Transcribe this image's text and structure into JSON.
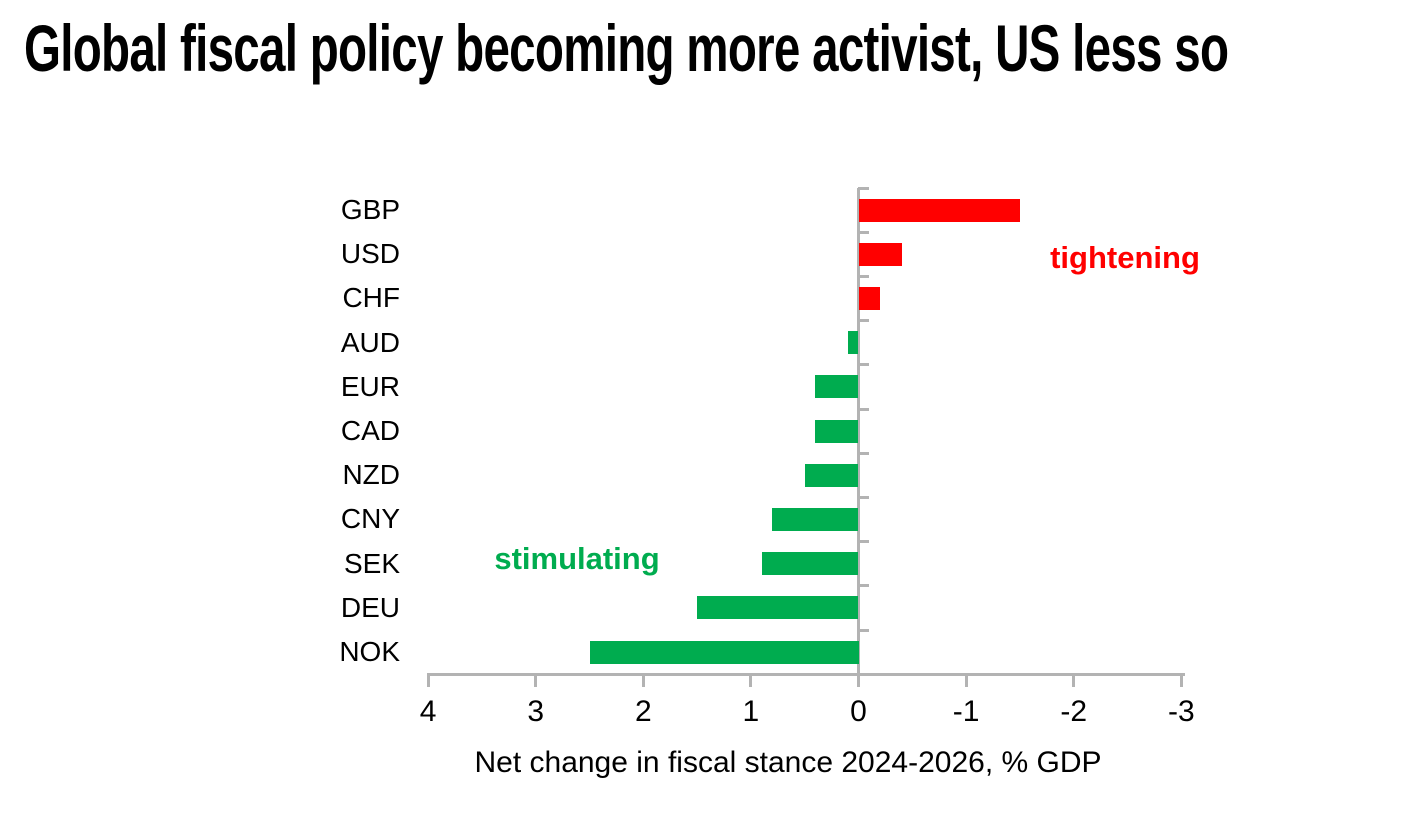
{
  "page": {
    "background": "#ffffff"
  },
  "chart_data": {
    "type": "bar",
    "orientation": "horizontal",
    "title": "Global fiscal policy becoming more activist, US less so",
    "xlabel": "Net change in fiscal stance 2024-2026, % GDP",
    "categories": [
      "GBP",
      "USD",
      "CHF",
      "AUD",
      "EUR",
      "CAD",
      "NZD",
      "CNY",
      "SEK",
      "DEU",
      "NOK"
    ],
    "values": [
      -1.5,
      -0.4,
      -0.2,
      0.1,
      0.4,
      0.4,
      0.5,
      0.8,
      0.9,
      1.5,
      2.5
    ],
    "x_ticks": [
      "4",
      "3",
      "2",
      "1",
      "0",
      "-1",
      "-2",
      "-3"
    ],
    "x_tick_values": [
      4,
      3,
      2,
      1,
      0,
      -1,
      -2,
      -3
    ],
    "xlim_left_to_right": [
      4,
      -3
    ],
    "axis_reversed": true,
    "grid": false,
    "legend": false,
    "annotations": {
      "tightening": {
        "text": "tightening",
        "color": "#ff0000"
      },
      "stimulating": {
        "text": "stimulating",
        "color": "#00ac4f"
      }
    },
    "colors": {
      "negative_bar": "#ff0000",
      "positive_bar": "#00ac4f",
      "axis_line": "#b3b3b3",
      "text": "#000000"
    }
  }
}
